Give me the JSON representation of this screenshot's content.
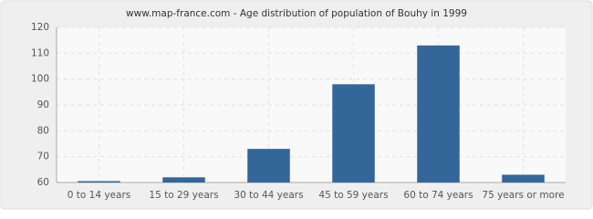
{
  "chart_data": {
    "type": "bar",
    "title": "www.map-france.com - Age distribution of population of Bouhy in 1999",
    "categories": [
      "0 to 14 years",
      "15 to 29 years",
      "30 to 44 years",
      "45 to 59 years",
      "60 to 74 years",
      "75 years or more"
    ],
    "values": [
      60,
      62,
      73,
      98,
      113,
      63
    ],
    "color": "#336699",
    "ylim": [
      60,
      120
    ],
    "yticks": [
      60,
      70,
      80,
      90,
      100,
      110,
      120
    ],
    "grid": true
  }
}
